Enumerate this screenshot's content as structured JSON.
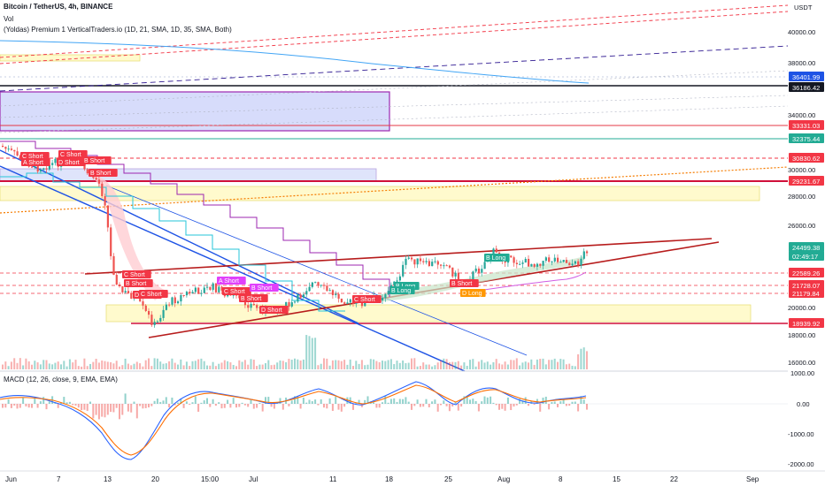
{
  "header": {
    "symbol": "Bitcoin / TetherUS, 4h, BINANCE",
    "vol": "Vol",
    "indicator": "(Yoldas) Premium 1 VerticalTraders.io (1D, 21, SMA, 1D, 35, SMA, Both)",
    "currency": "USDT"
  },
  "macd": {
    "label": "MACD (12, 26, close, 9, EMA, EMA)"
  },
  "price_axis": {
    "ticks": [
      "40000.00",
      "38000.00",
      "34000.00",
      "30000.00",
      "28000.00",
      "26000.00",
      "20000.00",
      "18000.00",
      "16000.00"
    ],
    "tags": [
      {
        "text": "36401.99",
        "color": "#1e53e5"
      },
      {
        "text": "36186.42",
        "color": "#131722"
      },
      {
        "text": "33331.03",
        "color": "#f23645"
      },
      {
        "text": "32375.44",
        "color": "#22ab94"
      },
      {
        "text": "30830.62",
        "color": "#f23645"
      },
      {
        "text": "29231.67",
        "color": "#f23645"
      },
      {
        "text": "24499.38",
        "color": "#22ab94"
      },
      {
        "text": "02:49:17",
        "color": "#22ab94"
      },
      {
        "text": "22589.26",
        "color": "#f23645"
      },
      {
        "text": "21728.07",
        "color": "#f23645"
      },
      {
        "text": "21179.84",
        "color": "#f23645"
      },
      {
        "text": "18939.92",
        "color": "#f23645"
      }
    ]
  },
  "macd_axis": {
    "ticks": [
      "1000.00",
      "0.00",
      "-1000.00",
      "-2000.00"
    ]
  },
  "time_axis": {
    "ticks": [
      "Jun",
      "7",
      "13",
      "20",
      "15:00",
      "Jul",
      "11",
      "18",
      "25",
      "Aug",
      "8",
      "15",
      "22",
      "Sep"
    ]
  },
  "signals": [
    {
      "text": "C Short",
      "color": "#f23645"
    },
    {
      "text": "D Short",
      "color": "#f23645"
    },
    {
      "text": "B Short",
      "color": "#f23645"
    },
    {
      "text": "A Short",
      "color": "#f23645"
    },
    {
      "text": "B Short",
      "color": "#f23645"
    },
    {
      "text": "C Short",
      "color": "#f23645"
    },
    {
      "text": "C Short",
      "color": "#f23645"
    },
    {
      "text": "D Short",
      "color": "#f23645"
    },
    {
      "text": "B Short",
      "color": "#f23645"
    },
    {
      "text": "C Short",
      "color": "#f23645"
    },
    {
      "text": "A Short",
      "color": "#e040fb"
    },
    {
      "text": "C Short",
      "color": "#f23645"
    },
    {
      "text": "B Short",
      "color": "#e040fb"
    },
    {
      "text": "B Short",
      "color": "#f23645"
    },
    {
      "text": "D Short",
      "color": "#f23645"
    },
    {
      "text": "C Short",
      "color": "#f23645"
    },
    {
      "text": "B Long",
      "color": "#22ab94"
    },
    {
      "text": "B Short",
      "color": "#f23645"
    },
    {
      "text": "D Long",
      "color": "#ff9800"
    },
    {
      "text": "B Long",
      "color": "#22ab94"
    },
    {
      "text": "B Long",
      "color": "#22ab94"
    }
  ],
  "colors": {
    "bull": "#26a69a",
    "bear": "#ef5350",
    "accent": "#2962ff"
  }
}
